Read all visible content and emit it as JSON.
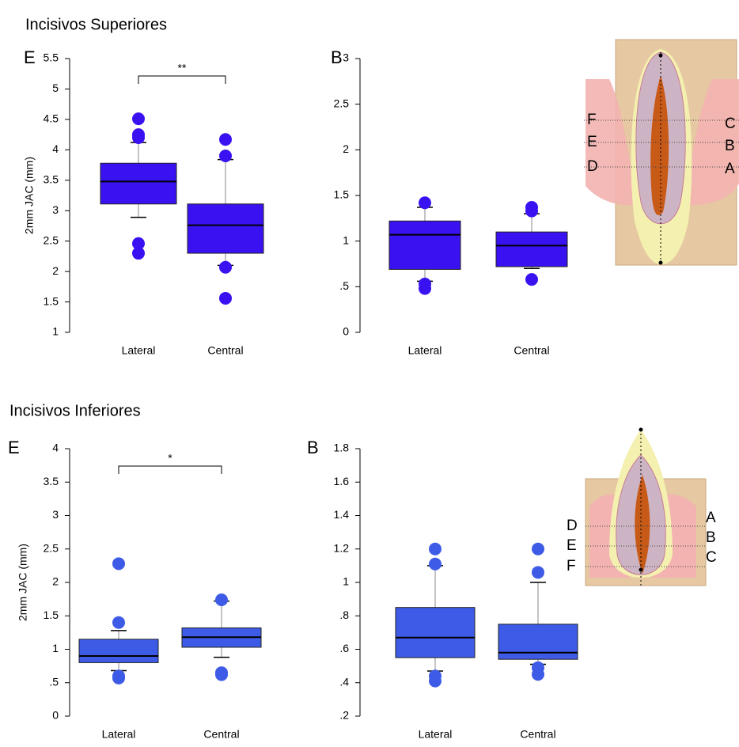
{
  "sections": [
    "Incisivos Superiores",
    "Incisivos Inferiores"
  ],
  "diagrams": [
    {
      "labels_left": [
        "F",
        "E",
        "D"
      ],
      "labels_right": [
        "C",
        "B",
        "A"
      ]
    },
    {
      "labels_left": [
        "D",
        "E",
        "F"
      ],
      "labels_right": [
        "A",
        "B",
        "C"
      ]
    }
  ],
  "chart_data": [
    {
      "type": "box",
      "panel_label": "E",
      "y_label": "2mm JAC (mm)",
      "annotation": "**",
      "color": "#3a12f2",
      "categories": [
        "Lateral",
        "Central"
      ],
      "boxes": [
        {
          "whisker_low": 2.89,
          "q1": 3.11,
          "median": 3.48,
          "q3": 3.78,
          "whisker_high": 4.12,
          "outliers": [
            4.51,
            4.25,
            4.2,
            2.46,
            2.3
          ]
        },
        {
          "whisker_low": 2.1,
          "q1": 2.3,
          "median": 2.76,
          "q3": 3.11,
          "whisker_high": 3.84,
          "outliers": [
            4.17,
            3.9,
            2.07,
            1.56
          ]
        }
      ],
      "ylim": [
        1,
        5.5
      ],
      "yticks": [
        1,
        1.5,
        2,
        2.5,
        3,
        3.5,
        4,
        4.5,
        5,
        5.5
      ]
    },
    {
      "type": "box",
      "panel_label": "B",
      "color": "#3a12f2",
      "categories": [
        "Lateral",
        "Central"
      ],
      "boxes": [
        {
          "whisker_low": 0.56,
          "q1": 0.69,
          "median": 1.07,
          "q3": 1.22,
          "whisker_high": 1.37,
          "outliers": [
            1.42,
            0.53,
            0.48
          ]
        },
        {
          "whisker_low": 0.7,
          "q1": 0.72,
          "median": 0.95,
          "q3": 1.1,
          "whisker_high": 1.3,
          "outliers": [
            1.37,
            1.33,
            0.58
          ]
        }
      ],
      "ylim": [
        0,
        3
      ],
      "yticks": [
        0,
        {
          "value": 0.5,
          "label": ".5"
        },
        1,
        1.5,
        2,
        2.5,
        3
      ]
    },
    {
      "type": "box",
      "panel_label": "E",
      "y_label": "2mm JAC (mm)",
      "annotation": "*",
      "color": "#3d5be6",
      "categories": [
        "Lateral",
        "Central"
      ],
      "boxes": [
        {
          "whisker_low": 0.68,
          "q1": 0.8,
          "median": 0.9,
          "q3": 1.15,
          "whisker_high": 1.28,
          "outliers": [
            2.28,
            1.4,
            0.6,
            0.57
          ]
        },
        {
          "whisker_low": 0.88,
          "q1": 1.03,
          "median": 1.18,
          "q3": 1.32,
          "whisker_high": 1.72,
          "outliers": [
            1.74,
            0.65,
            0.62
          ]
        }
      ],
      "ylim": [
        0,
        4
      ],
      "yticks": [
        0,
        {
          "value": 0.5,
          "label": ".5"
        },
        1,
        1.5,
        2,
        2.5,
        3,
        3.5,
        4
      ]
    },
    {
      "type": "box",
      "panel_label": "B",
      "color": "#3d5be6",
      "categories": [
        "Lateral",
        "Central"
      ],
      "boxes": [
        {
          "whisker_low": 0.47,
          "q1": 0.55,
          "median": 0.67,
          "q3": 0.85,
          "whisker_high": 1.1,
          "outliers": [
            1.2,
            1.11,
            0.44,
            0.41
          ]
        },
        {
          "whisker_low": 0.51,
          "q1": 0.54,
          "median": 0.58,
          "q3": 0.75,
          "whisker_high": 1.0,
          "outliers": [
            1.2,
            1.06,
            0.49,
            0.45
          ]
        }
      ],
      "ylim": [
        0.2,
        1.8
      ],
      "yticks": [
        {
          "value": 0.2,
          "label": ".2"
        },
        {
          "value": 0.4,
          "label": ".4"
        },
        {
          "value": 0.6,
          "label": ".6"
        },
        {
          "value": 0.8,
          "label": ".8"
        },
        1,
        1.2,
        1.4,
        1.6,
        1.8
      ]
    }
  ]
}
